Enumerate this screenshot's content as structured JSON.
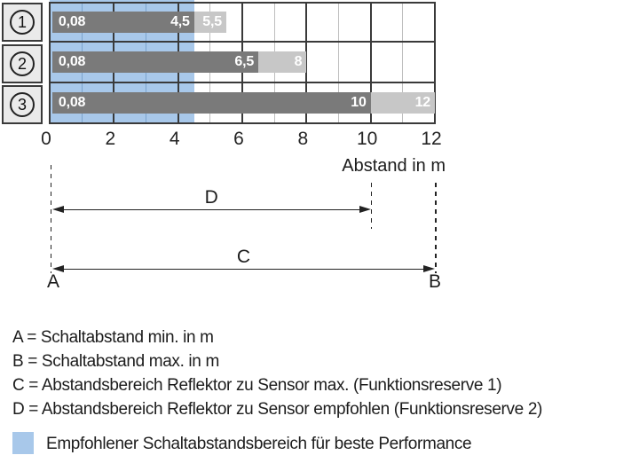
{
  "chart_data": {
    "type": "bar",
    "orientation": "horizontal",
    "xlabel": "Abstand in m",
    "xlim": [
      0,
      12
    ],
    "x_ticks": [
      0,
      2,
      4,
      6,
      8,
      10,
      12
    ],
    "grid": true,
    "rows": [
      {
        "symbol": "1",
        "min_value": 0.08,
        "min_label": "0,08",
        "recommended_max": 4.5,
        "recommended_max_label": "4,5",
        "max": 5.5,
        "max_label": "5,5"
      },
      {
        "symbol": "2",
        "min_value": 0.08,
        "min_label": "0,08",
        "recommended_max": 6.5,
        "recommended_max_label": "6,5",
        "max": 8,
        "max_label": "8"
      },
      {
        "symbol": "3",
        "min_value": 0.08,
        "min_label": "0,08",
        "recommended_max": 10,
        "recommended_max_label": "10",
        "max": 12,
        "max_label": "12"
      }
    ],
    "recommended_band": {
      "from": 0,
      "to": 4.5
    },
    "dimension_arrows": [
      {
        "label": "D",
        "from": 0.08,
        "to": 10
      },
      {
        "label": "C",
        "from": 0.08,
        "to": 12
      }
    ],
    "endpoint_labels": {
      "left": "A",
      "right": "B"
    }
  },
  "legend": {
    "items": [
      "A = Schaltabstand min. in m",
      "B = Schaltabstand max. in m",
      "C = Abstandsbereich Reflektor zu Sensor max. (Funktionsreserve 1)",
      "D = Abstandsbereich Reflektor zu Sensor empfohlen (Funktionsreserve 2)"
    ],
    "note": "Empfohlener Schaltabstandsbereich für beste Performance"
  },
  "colors": {
    "bar_dark": "#7a7a7a",
    "bar_light": "#c7c7c7",
    "recommended_band": "#a8c8ea",
    "grid_major": "#3a3a3a",
    "grid_minor": "#bebebe",
    "grid_minor_on_band": "#7ba3cd",
    "cell_bg": "#eaeaea",
    "line": "#222222",
    "text": "#1c1c1c"
  }
}
